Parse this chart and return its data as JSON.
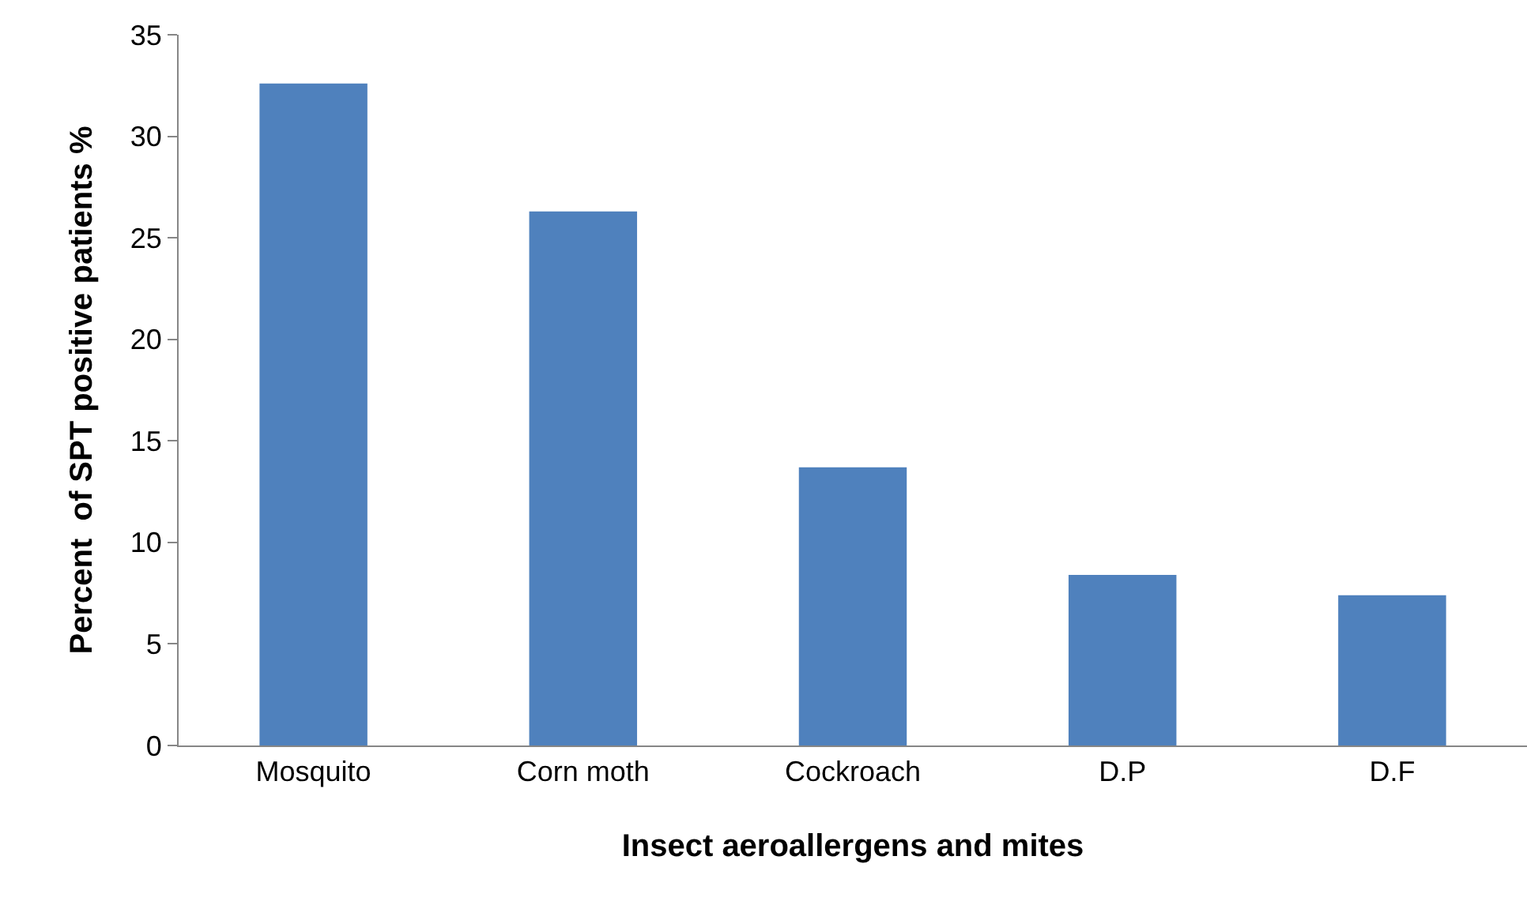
{
  "chart_data": {
    "type": "bar",
    "xlabel": "Insect aeroallergens and mites",
    "ylabel": "Percent  of SPT positive patients %",
    "categories": [
      "Mosquito",
      "Corn moth",
      "Cockroach",
      "D.P",
      "D.F"
    ],
    "values": [
      32.6,
      26.3,
      13.7,
      8.4,
      7.4
    ],
    "color": "#4f81bd",
    "ylim": [
      0,
      35
    ],
    "yticks": [
      0,
      5,
      10,
      15,
      20,
      25,
      30,
      35
    ]
  }
}
